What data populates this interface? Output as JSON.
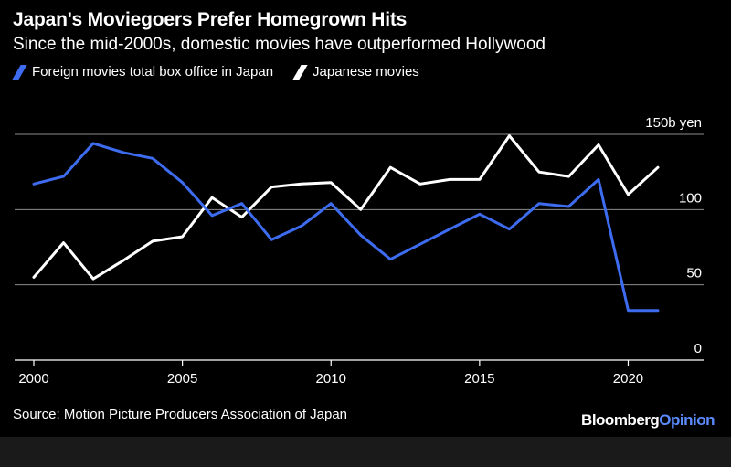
{
  "header": {
    "title": "Japan's Moviegoers Prefer Homegrown Hits",
    "subtitle": "Since the mid-2000s, domestic movies have outperformed Hollywood"
  },
  "footer": {
    "source": "Source: Motion Picture Producers Association of Japan",
    "brand_part1": "Bloomberg",
    "brand_part2": "Opinion"
  },
  "colors": {
    "foreign": "#3d6cf0",
    "japanese": "#ffffff",
    "grid": "#8c8c8c",
    "background": "#000000"
  },
  "chart_data": {
    "type": "line",
    "title": "Japan's Moviegoers Prefer Homegrown Hits",
    "subtitle": "Since the mid-2000s, domestic movies have outperformed Hollywood",
    "x": [
      2000,
      2001,
      2002,
      2003,
      2004,
      2005,
      2006,
      2007,
      2008,
      2009,
      2010,
      2011,
      2012,
      2013,
      2014,
      2015,
      2016,
      2017,
      2018,
      2019,
      2020,
      2021
    ],
    "series": [
      {
        "name": "Foreign movies total box office in Japan",
        "color": "#3d6cf0",
        "values": [
          117,
          122,
          144,
          138,
          134,
          118,
          96,
          104,
          80,
          89,
          104,
          83,
          67,
          77,
          87,
          97,
          87,
          104,
          102,
          120,
          33,
          33
        ]
      },
      {
        "name": "Japanese movies",
        "color": "#ffffff",
        "values": [
          55,
          78,
          54,
          66,
          79,
          82,
          108,
          95,
          115,
          117,
          118,
          100,
          128,
          117,
          120,
          120,
          149,
          125,
          122,
          143,
          110,
          128
        ]
      }
    ],
    "y_unit_label": "150b yen",
    "y_ticks": [
      0,
      50,
      100,
      150
    ],
    "y_tick_labels": [
      "0",
      "50",
      "100",
      "150b yen"
    ],
    "x_ticks": [
      2000,
      2005,
      2010,
      2015,
      2020
    ],
    "x_tick_labels": [
      "2000",
      "2005",
      "2010",
      "2015",
      "2020"
    ],
    "ylim": [
      0,
      150
    ],
    "xlim": [
      2000,
      2021
    ],
    "grid": true,
    "legend_position": "top-left"
  }
}
